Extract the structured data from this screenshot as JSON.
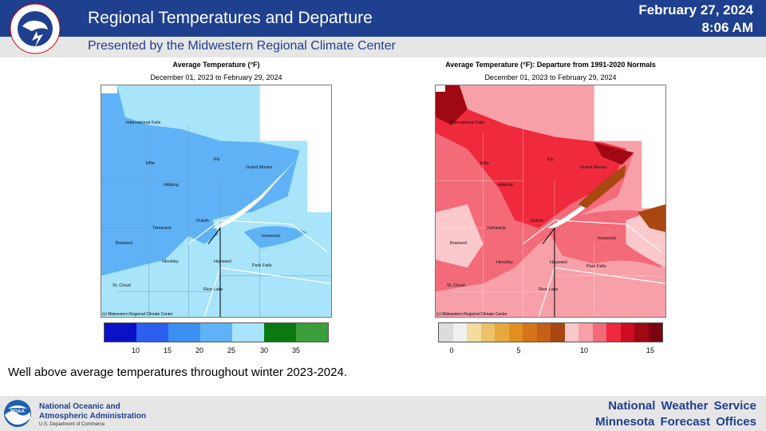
{
  "header": {
    "title": "Regional Temperatures and Departure",
    "date": "February 27, 2024",
    "time": "8:06 AM",
    "subtitle": "Presented by the Midwestern Regional Climate Center",
    "logo_text": "NATIONAL WEATHER SERVICE"
  },
  "left_map": {
    "title": "Average Temperature (°F)",
    "subtitle": "December 01, 2023 to February 29, 2024",
    "credit": "(c) Midwestern Regional Climate Center",
    "legend_colors": [
      "#0a12c8",
      "#2a5ff0",
      "#3d8ff0",
      "#5fb2f5",
      "#a8e4fa",
      "#0a7a10",
      "#3a9e3a"
    ],
    "legend_ticks": [
      "10",
      "15",
      "20",
      "25",
      "30",
      "35"
    ]
  },
  "right_map": {
    "title": "Average Temperature (°F): Departure from 1991-2020 Normals",
    "subtitle": "December 01, 2023 to February 29, 2024",
    "credit": "(c) Midwestern Regional Climate Center",
    "legend_colors": [
      "#dcdcdc",
      "#f0f0f0",
      "#f3dca0",
      "#ecc26a",
      "#e7a840",
      "#e08f20",
      "#d4751a",
      "#c56018",
      "#a84810",
      "#fbc8cc",
      "#f8a0a8",
      "#f36a78",
      "#ee2a3c",
      "#cc0d20",
      "#a00814",
      "#7a0510"
    ],
    "legend_ticks": [
      "0",
      "5",
      "10",
      "15"
    ]
  },
  "cities": [
    "International Falls",
    "Ely",
    "Grand Marais",
    "Effie",
    "Hibbing",
    "Duluth",
    "Tamarack",
    "Ironwood",
    "Brainerd",
    "Hinckley",
    "Hayward",
    "Park Falls",
    "St. Cloud",
    "Rice Lake"
  ],
  "caption": "Well above average temperatures throughout winter 2023-2024.",
  "footer": {
    "noaa_line1": "National Oceanic and",
    "noaa_line2": "Atmospheric Administration",
    "noaa_dept": "U.S. Department of Commerce",
    "noaa_logo_text": "NOAA",
    "nws_line1": "National Weather Service",
    "nws_line2": "Minnesota Forecast Offices"
  }
}
